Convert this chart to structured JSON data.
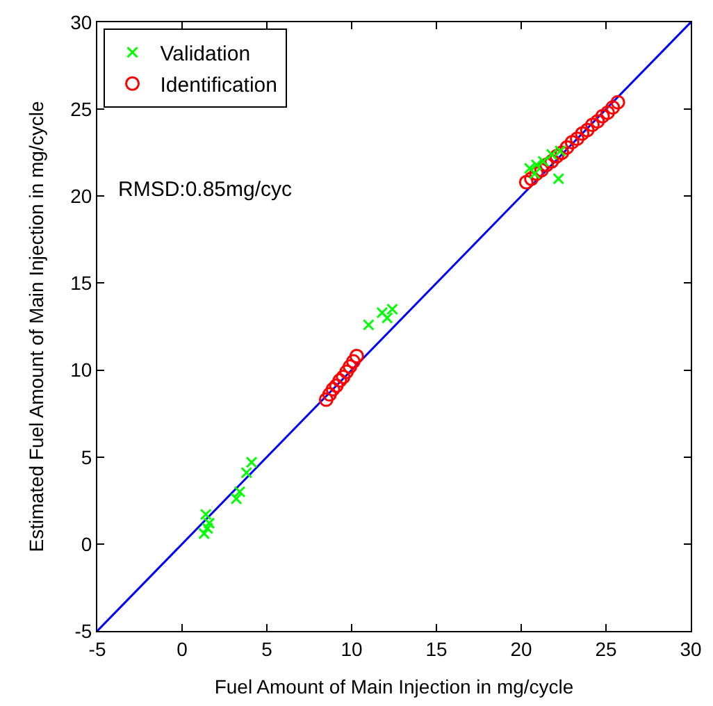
{
  "chart_data": {
    "type": "scatter",
    "xlabel": "Fuel Amount of Main Injection in mg/cycle",
    "ylabel": "Estimated Fuel Amount of Main Injection in mg/cycle",
    "annotations": [
      "RMSD:0.85mg/cyc"
    ],
    "series": [
      {
        "name": "Validation",
        "color": "#00ff00",
        "marker": "cross",
        "x": [
          1.3,
          1.5,
          1.4,
          1.6,
          3.2,
          3.4,
          3.8,
          4.1,
          11.0,
          11.8,
          12.1,
          12.4,
          20.5,
          20.8,
          20.9,
          21.3,
          21.8,
          22.2,
          22.3
        ],
        "values": [
          0.6,
          0.9,
          1.7,
          1.2,
          2.6,
          3.0,
          4.1,
          4.7,
          12.6,
          13.3,
          13.0,
          13.5,
          21.6,
          21.3,
          21.8,
          22.0,
          22.4,
          21.0,
          22.6
        ]
      },
      {
        "name": "Identification",
        "color": "#ff0000",
        "marker": "circle",
        "x": [
          8.5,
          8.7,
          8.9,
          9.1,
          9.3,
          9.5,
          9.7,
          9.9,
          10.1,
          10.3,
          20.3,
          20.6,
          20.9,
          21.2,
          21.5,
          21.8,
          22.1,
          22.4,
          22.7,
          23.0,
          23.3,
          23.6,
          23.9,
          24.2,
          24.5,
          24.8,
          25.1,
          25.4,
          25.7
        ],
        "values": [
          8.3,
          8.6,
          8.9,
          9.1,
          9.4,
          9.6,
          9.9,
          10.2,
          10.5,
          10.8,
          20.8,
          21.0,
          21.3,
          21.5,
          21.8,
          22.0,
          22.3,
          22.5,
          22.8,
          23.1,
          23.3,
          23.6,
          23.8,
          24.1,
          24.3,
          24.6,
          24.8,
          25.1,
          25.4
        ]
      },
      {
        "type": "line",
        "color": "#0000ff",
        "marker": "none",
        "x": [
          -5,
          30
        ],
        "values": [
          -5,
          30
        ]
      }
    ],
    "xlim": [
      -5,
      30
    ],
    "ylim": [
      -5,
      30
    ],
    "xticks": [
      -5,
      0,
      5,
      10,
      15,
      20,
      25,
      30
    ],
    "yticks": [
      -5,
      0,
      5,
      10,
      15,
      20,
      25,
      30
    ],
    "legend": "top left"
  }
}
